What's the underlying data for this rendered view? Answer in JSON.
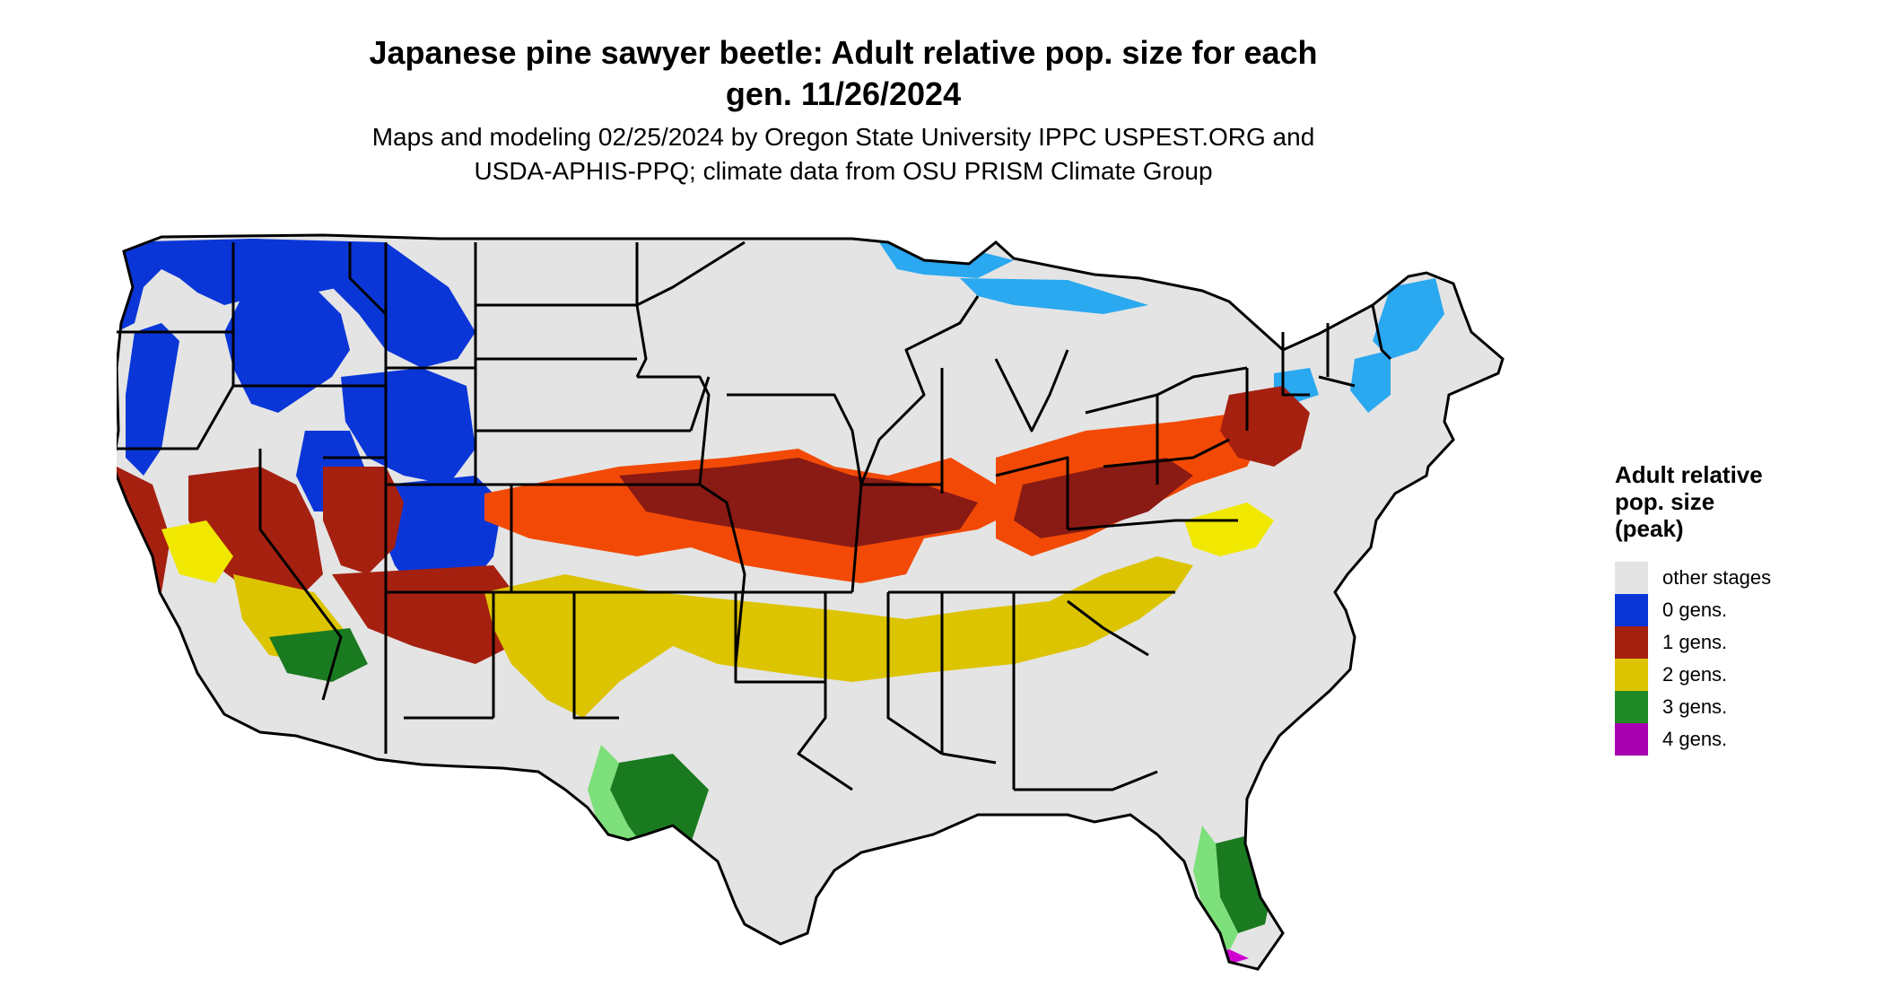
{
  "title_line1": "Japanese pine sawyer beetle: Adult relative pop. size for each",
  "title_line2": "gen. 11/26/2024",
  "subtitle_line1": "Maps and modeling 02/25/2024 by Oregon State University IPPC USPEST.ORG and",
  "subtitle_line2": "USDA-APHIS-PPQ; climate data from OSU PRISM Climate Group",
  "legend": {
    "title_line1": "Adult relative",
    "title_line2": "pop. size",
    "title_line3": "(peak)",
    "items": [
      {
        "label": "other stages",
        "color": "#e4e4e4"
      },
      {
        "label": "0 gens.",
        "color": "#0a36d8"
      },
      {
        "label": "1 gens.",
        "color": "#a62010"
      },
      {
        "label": "2 gens.",
        "color": "#dcc400"
      },
      {
        "label": "3 gens.",
        "color": "#218a28"
      },
      {
        "label": "4 gens.",
        "color": "#a800b0"
      }
    ]
  },
  "map_colors": {
    "background": "#e4e4e4",
    "zero_gens": "#0a36d8",
    "zero_gens_light": "#2aa8f0",
    "one_gen_dark": "#8a1a14",
    "one_gen_orange": "#f24a06",
    "one_gen_red": "#a62010",
    "two_gens": "#dcc400",
    "two_gens_bright": "#f0e800",
    "three_gens": "#1a7a20",
    "three_gens_light": "#7ee07a",
    "four_gens": "#d000d0",
    "borders": "#000000"
  }
}
